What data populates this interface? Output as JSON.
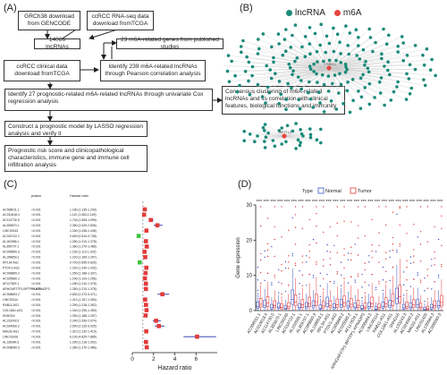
{
  "panels": {
    "a": "(A)",
    "b": "(B)",
    "c": "(C)",
    "d": "(D)"
  },
  "flow": {
    "b1": "GRCh38 download from GENCODE",
    "b2": "ccRCC RNA-seq data download fromTCGA",
    "b3": "14086 lncRNAs",
    "b4": "23 m6A-related genes from published studies",
    "b5": "ccRCC clinical data download fromTCGA",
    "b6": "Identify 239 m6A-related lncRNAs through Pearson correlation analysis",
    "b7": "Identify 27 prognostic-related m6A-related lncRNAs through univariate Cox regression analysis",
    "b8": "Consensus clustering of m6A-related lncRNAs and its correlation with clinical features, biological functions and immunity",
    "b9": "Construct a prognostic model by LASSO regression analysis and verify it",
    "b10": "Prognostic risk score and clinicopathological characteristics, immune gene and immune cell infiltration analysis"
  },
  "network": {
    "legend": [
      {
        "label": "lncRNA",
        "color": "#1b8a7a"
      },
      {
        "label": "m6A",
        "color": "#e8463f"
      }
    ],
    "hub1": "YTHDC1",
    "hub2": "METTL3"
  },
  "forest": {
    "col_p": "pvalue",
    "col_hr": "Hazard ratio",
    "xlabel": "Hazard ratio",
    "ticks": [
      "0",
      "2",
      "4",
      "6"
    ]
  },
  "boxplot": {
    "legend_title": "Type",
    "legend": [
      {
        "label": "Normal",
        "color": "#3a54c8"
      },
      {
        "label": "Tumor",
        "color": "#e63a3a"
      }
    ],
    "ylabel": "Gene expression",
    "yticks": [
      "0",
      "10",
      "20",
      "30"
    ]
  },
  "chart_data": [
    {
      "type": "scatter",
      "title": "",
      "xlabel": "Hazard ratio",
      "xlim": [
        0,
        8
      ],
      "series": [
        {
          "values": [
            {
              "gene": "AC008011.1",
              "p": "<0.001",
              "hr": 1.18
            },
            {
              "gene": "AC010618.4",
              "p": "<0.001",
              "hr": 1.11
            },
            {
              "gene": "AC114730.5",
              "p": "<0.001",
              "hr": 1.74
            },
            {
              "gene": "AL355870.1",
              "p": "<0.001",
              "hr": 2.36
            },
            {
              "gene": "LINC00243",
              "p": "<0.001",
              "hr": 1.33
            },
            {
              "gene": "AC016722.1",
              "p": "<0.001",
              "hr": 0.6
            },
            {
              "gene": "AL162586.1",
              "p": "<0.001",
              "hr": 1.28
            },
            {
              "gene": "AL359707.1",
              "p": "<0.001",
              "hr": 1.36
            },
            {
              "gene": "AC099850.3",
              "p": "<0.001",
              "hr": 1.15
            },
            {
              "gene": "AL158853.1",
              "p": "<0.001",
              "hr": 1.22
            },
            {
              "gene": "RPL34-AS1",
              "p": "<0.001",
              "hr": 0.7
            },
            {
              "gene": "PTOV1-AS2",
              "p": "<0.001",
              "hr": 1.32
            },
            {
              "gene": "AC008869.2",
              "p": "<0.001",
              "hr": 1.25
            },
            {
              "gene": "AC025580.2",
              "p": "<0.001",
              "hr": 1.19
            },
            {
              "gene": "AF117829.1",
              "p": "<0.001",
              "hr": 1.28
            },
            {
              "gene": "ARHGAP27P1-BPTFP1-KPNA2P3",
              "p": "<0.001",
              "hr": 1.28
            },
            {
              "gene": "AC008694.2",
              "p": "<0.001",
              "hr": 2.83
            },
            {
              "gene": "LINC00114",
              "p": "<0.001",
              "hr": 1.21
            },
            {
              "gene": "RAB11-AS1",
              "p": "<0.001",
              "hr": 1.29
            },
            {
              "gene": "COL18A1-AS1",
              "p": "<0.001",
              "hr": 1.34
            },
            {
              "gene": "SNHG16",
              "p": "<0.001",
              "hr": 1.25
            },
            {
              "gene": "AL133243.3",
              "p": "<0.001",
              "hr": 2.24
            },
            {
              "gene": "AC024060.2",
              "p": "<0.001",
              "hr": 2.5
            },
            {
              "gene": "MAGI2-AS1",
              "p": "<0.001",
              "hr": 1.31
            },
            {
              "gene": "LINC01426",
              "p": "<0.001",
              "hr": 6.1
            },
            {
              "gene": "AL136084.3",
              "p": "<0.001",
              "hr": 1.29
            },
            {
              "gene": "AC008060.3",
              "p": "<0.001",
              "hr": 1.36
            }
          ]
        }
      ]
    },
    {
      "type": "box",
      "title": "",
      "ylabel": "Gene expression",
      "ylim": [
        0,
        30
      ],
      "categories": [
        "AC008011.1",
        "AC010618.4",
        "AC114730.5",
        "AL355870.1",
        "LINC00243",
        "AC016722.1",
        "AL162586.1",
        "AL359707.1",
        "AC099850.3",
        "AL158853.1",
        "RPL34-AS1",
        "PTOV1-AS2",
        "AC008869.2",
        "AC025580.2",
        "AF117829.1",
        "ARHGAP27P1-BPTFP1-KPNA2P3",
        "AC008694.2",
        "LINC00114",
        "RAB11-AS1",
        "COL18A1-AS1",
        "SNHG16",
        "AL133243.3",
        "AC024060.2",
        "MAGI2-AS1",
        "LINC01426",
        "AL136084.3",
        "AC008060.3"
      ],
      "series": [
        {
          "name": "Normal",
          "values": [
            1.2,
            1.5,
            0.8,
            1.0,
            0.6,
            3.2,
            0.9,
            1.1,
            1.4,
            0.7,
            2.0,
            0.9,
            1.6,
            1.3,
            1.0,
            0.6,
            1.1,
            0.4,
            1.2,
            1.5,
            3.5,
            0.8,
            1.0,
            1.6,
            0.3,
            0.8,
            1.4
          ]
        },
        {
          "name": "Tumor",
          "values": [
            1.8,
            2.1,
            1.4,
            0.9,
            1.1,
            2.4,
            1.6,
            2.0,
            2.5,
            1.3,
            1.4,
            1.7,
            2.2,
            1.8,
            1.5,
            1.0,
            2.0,
            0.9,
            1.9,
            2.6,
            4.0,
            1.2,
            1.6,
            1.0,
            0.5,
            1.4,
            2.3
          ]
        }
      ]
    }
  ]
}
